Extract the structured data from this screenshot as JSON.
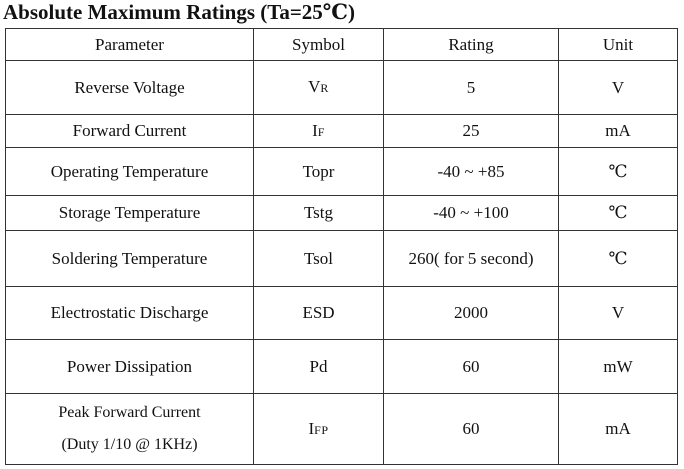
{
  "title": "Absolute Maximum Ratings (Ta=25℃)",
  "table": {
    "headers": [
      "Parameter",
      "Symbol",
      "Rating",
      "Unit"
    ],
    "rows": [
      {
        "parameter": "Reverse Voltage",
        "symbol_main": "V",
        "symbol_sub": "R",
        "rating": "5",
        "unit": "V"
      },
      {
        "parameter": "Forward Current",
        "symbol_main": "I",
        "symbol_sub": "F",
        "rating": "25",
        "unit": "mA"
      },
      {
        "parameter": "Operating Temperature",
        "symbol": "Topr",
        "rating": "-40 ~ +85",
        "unit": "℃"
      },
      {
        "parameter": "Storage Temperature",
        "symbol": "Tstg",
        "rating": "-40 ~ +100",
        "unit": "℃"
      },
      {
        "parameter": "Soldering Temperature",
        "symbol": "Tsol",
        "rating": "260( for 5 second)",
        "unit": "℃"
      },
      {
        "parameter": "Electrostatic Discharge",
        "symbol": "ESD",
        "rating": "2000",
        "unit": "V"
      },
      {
        "parameter": "Power Dissipation",
        "symbol": "Pd",
        "rating": "60",
        "unit": "mW"
      },
      {
        "parameter_line1": "Peak Forward Current",
        "parameter_line2": "(Duty 1/10 @ 1KHz)",
        "symbol_main": "I",
        "symbol_sub": "FP",
        "rating": "60",
        "unit": "mA"
      }
    ]
  }
}
